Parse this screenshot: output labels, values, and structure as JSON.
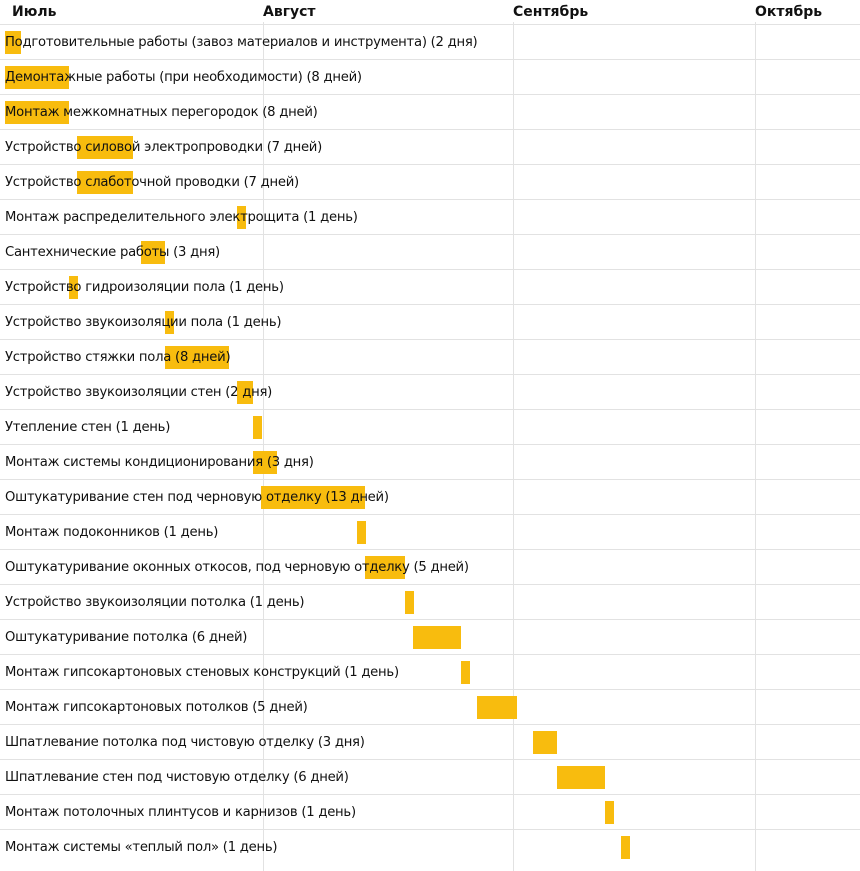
{
  "chart_data": {
    "type": "gantt",
    "title": "",
    "bar_color": "#F8BC0E",
    "months": [
      "Июль",
      "Август",
      "Сентябрь",
      "Октябрь"
    ],
    "x_unit": "day offset from start",
    "tasks": [
      {
        "label": "Подготовительные работы (завоз материалов и инструмента) (2 дня)",
        "start": 0,
        "duration": 2
      },
      {
        "label": "Демонтажные работы (при необходимости) (8 дней)",
        "start": 0,
        "duration": 8
      },
      {
        "label": "Монтаж межкомнатных перегородок (8 дней)",
        "start": 0,
        "duration": 8
      },
      {
        "label": "Устройство силовой электропроводки (7 дней)",
        "start": 9,
        "duration": 7
      },
      {
        "label": "Устройство слаботочной проводки (7 дней)",
        "start": 9,
        "duration": 7
      },
      {
        "label": "Монтаж распределительного электрощита (1 день)",
        "start": 29,
        "duration": 1
      },
      {
        "label": "Сантехнические работы (3 дня)",
        "start": 17,
        "duration": 3
      },
      {
        "label": "Устройство гидроизоляции пола (1 день)",
        "start": 8,
        "duration": 1
      },
      {
        "label": "Устройство звукоизоляции пола (1 день)",
        "start": 20,
        "duration": 1
      },
      {
        "label": "Устройство стяжки пола (8 дней)",
        "start": 20,
        "duration": 8
      },
      {
        "label": "Устройство звукоизоляции стен (2 дня)",
        "start": 29,
        "duration": 2
      },
      {
        "label": "Утепление стен (1 день)",
        "start": 31,
        "duration": 1
      },
      {
        "label": "Монтаж системы кондиционирования (3 дня)",
        "start": 31,
        "duration": 3
      },
      {
        "label": "Оштукатуривание стен под черновую отделку (13 дней)",
        "start": 32,
        "duration": 13
      },
      {
        "label": "Монтаж подоконников (1 день)",
        "start": 44,
        "duration": 1
      },
      {
        "label": "Оштукатуривание оконных откосов, под черновую отделку (5 дней)",
        "start": 45,
        "duration": 5
      },
      {
        "label": "Устройство звукоизоляции потолка (1 день)",
        "start": 50,
        "duration": 1
      },
      {
        "label": "Оштукатуривание потолка (6 дней)",
        "start": 51,
        "duration": 6
      },
      {
        "label": "Монтаж гипсокартоновых стеновых конструкций (1 день)",
        "start": 57,
        "duration": 1
      },
      {
        "label": "Монтаж гипсокартоновых потолков (5 дней)",
        "start": 59,
        "duration": 5
      },
      {
        "label": "Шпатлевание потолка под чистовую отделку (3 дня)",
        "start": 66,
        "duration": 3
      },
      {
        "label": "Шпатлевание стен под чистовую отделку (6 дней)",
        "start": 69,
        "duration": 6
      },
      {
        "label": "Монтаж потолочных плинтусов и карнизов (1 день)",
        "start": 75,
        "duration": 1
      },
      {
        "label": "Монтаж системы «теплый пол» (1 день)",
        "start": 77,
        "duration": 1
      }
    ]
  }
}
